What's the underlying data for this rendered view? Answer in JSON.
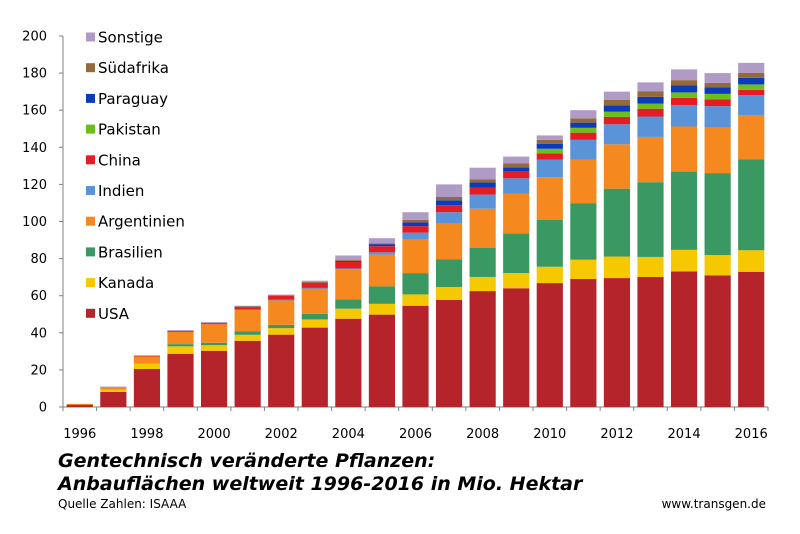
{
  "chart_data": {
    "type": "bar",
    "stacked": true,
    "ylim": [
      0,
      200
    ],
    "yticks": [
      0,
      20,
      40,
      60,
      80,
      100,
      120,
      140,
      160,
      180,
      200
    ],
    "grid": false,
    "legend_placement": "top-left, inside plot, reversed stacking order",
    "categories": [
      "1996",
      "1997",
      "1998",
      "1999",
      "2000",
      "2001",
      "2002",
      "2003",
      "2004",
      "2005",
      "2006",
      "2007",
      "2008",
      "2009",
      "2010",
      "2011",
      "2012",
      "2013",
      "2014",
      "2015",
      "2016"
    ],
    "x_tick_labels": [
      "1996",
      "1998",
      "2000",
      "2002",
      "2004",
      "2006",
      "2008",
      "2010",
      "2012",
      "2014",
      "2016"
    ],
    "series": [
      {
        "name": "USA",
        "color": "#b5242a",
        "values": [
          1.5,
          8.1,
          20.5,
          28.7,
          30.3,
          35.7,
          39.0,
          42.8,
          47.6,
          49.8,
          54.6,
          57.7,
          62.5,
          64.0,
          66.8,
          69.0,
          69.5,
          70.1,
          73.1,
          70.9,
          72.9
        ]
      },
      {
        "name": "Kanada",
        "color": "#f5c800",
        "values": [
          0.1,
          1.3,
          2.8,
          4.0,
          3.0,
          3.2,
          3.5,
          4.4,
          5.4,
          5.8,
          6.1,
          7.0,
          7.6,
          8.2,
          8.8,
          10.4,
          11.6,
          10.8,
          11.6,
          11.0,
          11.6
        ]
      },
      {
        "name": "Brasilien",
        "color": "#3a9963",
        "values": [
          0,
          0,
          0,
          1.2,
          1.3,
          1.8,
          1.8,
          3.0,
          5.0,
          9.4,
          11.5,
          15.0,
          15.8,
          21.4,
          25.4,
          30.3,
          36.6,
          40.3,
          42.2,
          44.2,
          49.1
        ]
      },
      {
        "name": "Argentinien",
        "color": "#f5891f",
        "values": [
          0.1,
          1.4,
          4.3,
          6.7,
          10.0,
          11.8,
          13.5,
          13.9,
          16.2,
          17.1,
          18.0,
          19.1,
          21.0,
          21.3,
          22.9,
          23.7,
          23.9,
          24.4,
          24.3,
          24.5,
          23.8
        ]
      },
      {
        "name": "Indien",
        "color": "#5b93d8",
        "values": [
          0,
          0,
          0,
          0,
          0,
          0,
          0.1,
          0.1,
          0.5,
          1.3,
          3.8,
          6.2,
          7.6,
          8.4,
          9.4,
          10.6,
          10.8,
          11.0,
          11.6,
          11.6,
          10.8
        ]
      },
      {
        "name": "China",
        "color": "#e51c23",
        "values": [
          0,
          0,
          0.1,
          0.3,
          0.5,
          1.5,
          2.1,
          2.8,
          3.7,
          3.3,
          3.5,
          3.8,
          3.8,
          3.7,
          3.5,
          3.9,
          4.0,
          4.2,
          3.9,
          3.7,
          2.8
        ]
      },
      {
        "name": "Pakistan",
        "color": "#6cbf1a",
        "values": [
          0,
          0,
          0,
          0,
          0,
          0,
          0,
          0,
          0,
          0,
          0,
          0,
          0,
          0,
          2.4,
          2.6,
          2.8,
          2.8,
          2.9,
          2.9,
          2.9
        ]
      },
      {
        "name": "Paraguay",
        "color": "#0a3bbf",
        "values": [
          0,
          0,
          0,
          0,
          0,
          0,
          0,
          0,
          0.3,
          1.1,
          2.0,
          2.6,
          2.7,
          2.2,
          2.6,
          2.8,
          3.4,
          3.6,
          3.9,
          3.6,
          3.6
        ]
      },
      {
        "name": "Südafrika",
        "color": "#94693b",
        "values": [
          0,
          0,
          0,
          0.1,
          0.2,
          0.2,
          0.3,
          0.4,
          0.5,
          0.5,
          1.4,
          1.8,
          1.8,
          2.1,
          2.2,
          2.3,
          2.9,
          2.9,
          2.7,
          2.3,
          2.7
        ]
      },
      {
        "name": "Sonstige",
        "color": "#b09ac6",
        "values": [
          0,
          0.2,
          0.2,
          0.5,
          0.5,
          0.4,
          0.3,
          0.7,
          2.5,
          2.7,
          4.1,
          6.8,
          6.2,
          3.7,
          2.4,
          4.4,
          4.5,
          4.9,
          5.8,
          5.3,
          5.3
        ]
      }
    ]
  },
  "title_line1": "Gentechnisch veränderte Pflanzen:",
  "title_line2": "Anbauflächen weltweit 1996-2016 in Mio. Hektar",
  "source": "Quelle Zahlen: ISAAA",
  "site": "www.transgen.de"
}
